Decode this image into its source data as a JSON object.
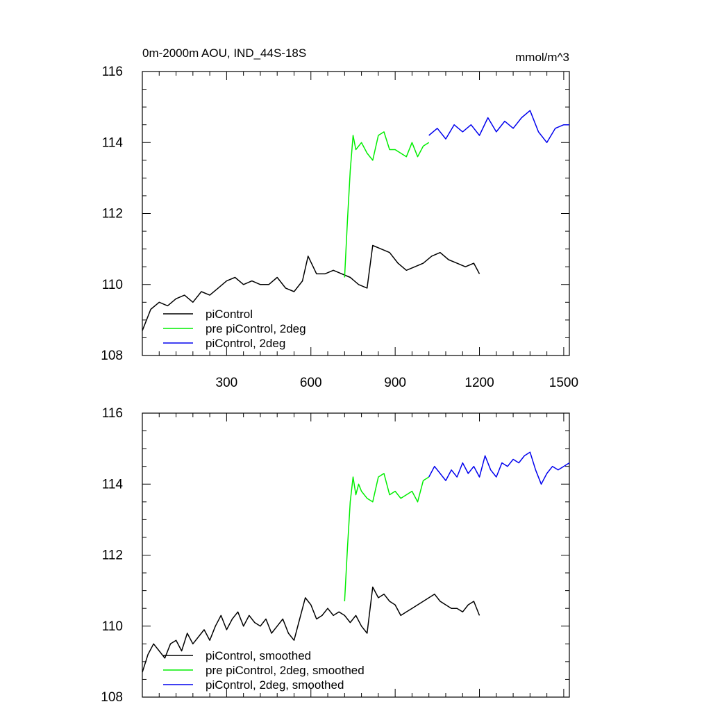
{
  "chart_data": [
    {
      "type": "line",
      "title": "0m-2000m AOU, IND_44S-18S",
      "units": "mmol/m^3",
      "xlim": [
        0,
        1520
      ],
      "ylim": [
        108,
        116
      ],
      "xticks": [
        300,
        600,
        900,
        1200,
        1500
      ],
      "xtick_labels": [
        "300",
        "600",
        "900",
        "1200",
        "1500"
      ],
      "yticks": [
        108,
        110,
        112,
        114,
        116
      ],
      "ytick_labels": [
        "108",
        "110",
        "112",
        "114",
        "116"
      ],
      "legend_position": "bottom-left",
      "series": [
        {
          "name": "piControl",
          "color": "#000000",
          "x": [
            0,
            30,
            60,
            90,
            120,
            150,
            180,
            210,
            240,
            270,
            300,
            330,
            360,
            390,
            420,
            450,
            480,
            510,
            540,
            570,
            590,
            620,
            650,
            680,
            710,
            740,
            770,
            800,
            820,
            850,
            880,
            910,
            940,
            970,
            1000,
            1030,
            1060,
            1090,
            1120,
            1150,
            1180,
            1200
          ],
          "y": [
            108.7,
            109.3,
            109.5,
            109.4,
            109.6,
            109.7,
            109.5,
            109.8,
            109.7,
            109.9,
            110.1,
            110.2,
            110.0,
            110.1,
            110.0,
            110.0,
            110.2,
            109.9,
            109.8,
            110.1,
            110.8,
            110.3,
            110.3,
            110.4,
            110.3,
            110.2,
            110.0,
            109.9,
            111.1,
            111.0,
            110.9,
            110.6,
            110.4,
            110.5,
            110.6,
            110.8,
            110.9,
            110.7,
            110.6,
            110.5,
            110.6,
            110.3
          ]
        },
        {
          "name": "pre piControl, 2deg",
          "color": "#00ee00",
          "x": [
            720,
            730,
            740,
            750,
            760,
            780,
            800,
            820,
            840,
            860,
            880,
            900,
            920,
            940,
            960,
            980,
            1000,
            1020
          ],
          "y": [
            110.2,
            111.8,
            113.2,
            114.2,
            113.8,
            114.0,
            113.7,
            113.5,
            114.2,
            114.3,
            113.8,
            113.8,
            113.7,
            113.6,
            114.0,
            113.6,
            113.9,
            114.0
          ]
        },
        {
          "name": "piControl, 2deg",
          "color": "#0000ee",
          "x": [
            1020,
            1050,
            1080,
            1110,
            1140,
            1170,
            1200,
            1230,
            1260,
            1290,
            1320,
            1350,
            1380,
            1410,
            1440,
            1470,
            1500,
            1520
          ],
          "y": [
            114.2,
            114.4,
            114.1,
            114.5,
            114.3,
            114.5,
            114.2,
            114.7,
            114.3,
            114.6,
            114.4,
            114.7,
            114.9,
            114.3,
            114.0,
            114.4,
            114.5,
            114.5
          ]
        }
      ]
    },
    {
      "type": "line",
      "xlim": [
        0,
        1520
      ],
      "ylim": [
        108,
        116
      ],
      "xticks": [
        300,
        600,
        900,
        1200,
        1500
      ],
      "yticks": [
        108,
        110,
        112,
        114,
        116
      ],
      "ytick_labels": [
        "108",
        "110",
        "112",
        "114",
        "116"
      ],
      "legend_position": "bottom-left",
      "series": [
        {
          "name": "piControl, smoothed",
          "color": "#000000",
          "x": [
            0,
            20,
            40,
            60,
            80,
            100,
            120,
            140,
            160,
            180,
            200,
            220,
            240,
            260,
            280,
            300,
            320,
            340,
            360,
            380,
            400,
            420,
            440,
            460,
            480,
            500,
            520,
            540,
            560,
            580,
            600,
            620,
            640,
            660,
            680,
            700,
            720,
            740,
            760,
            780,
            800,
            820,
            840,
            860,
            880,
            900,
            920,
            940,
            960,
            980,
            1000,
            1020,
            1040,
            1060,
            1080,
            1100,
            1120,
            1140,
            1160,
            1180,
            1200
          ],
          "y": [
            108.7,
            109.2,
            109.5,
            109.3,
            109.1,
            109.5,
            109.6,
            109.3,
            109.8,
            109.5,
            109.7,
            109.9,
            109.6,
            110.0,
            110.3,
            109.9,
            110.2,
            110.4,
            110.0,
            110.3,
            110.1,
            110.0,
            110.2,
            109.8,
            110.0,
            110.2,
            109.8,
            109.6,
            110.2,
            110.8,
            110.6,
            110.2,
            110.3,
            110.5,
            110.3,
            110.4,
            110.3,
            110.1,
            110.3,
            110.0,
            109.8,
            111.1,
            110.8,
            110.9,
            110.7,
            110.6,
            110.3,
            110.4,
            110.5,
            110.6,
            110.7,
            110.8,
            110.9,
            110.7,
            110.6,
            110.5,
            110.5,
            110.4,
            110.6,
            110.7,
            110.3
          ]
        },
        {
          "name": "pre piControl, 2deg, smoothed",
          "color": "#00ee00",
          "x": [
            720,
            730,
            740,
            750,
            760,
            770,
            780,
            800,
            820,
            840,
            860,
            880,
            900,
            920,
            940,
            960,
            980,
            1000,
            1020
          ],
          "y": [
            110.7,
            112.2,
            113.5,
            114.2,
            113.7,
            114.0,
            113.8,
            113.6,
            113.5,
            114.2,
            114.3,
            113.7,
            113.8,
            113.6,
            113.7,
            113.8,
            113.5,
            114.1,
            114.2
          ]
        },
        {
          "name": "piControl, 2deg, smoothed",
          "color": "#0000ee",
          "x": [
            1020,
            1040,
            1060,
            1080,
            1100,
            1120,
            1140,
            1160,
            1180,
            1200,
            1220,
            1240,
            1260,
            1280,
            1300,
            1320,
            1340,
            1360,
            1380,
            1400,
            1420,
            1440,
            1460,
            1480,
            1500,
            1520
          ],
          "y": [
            114.2,
            114.5,
            114.3,
            114.1,
            114.4,
            114.2,
            114.6,
            114.3,
            114.5,
            114.2,
            114.8,
            114.4,
            114.2,
            114.6,
            114.5,
            114.7,
            114.6,
            114.8,
            114.9,
            114.4,
            114.0,
            114.3,
            114.5,
            114.4,
            114.5,
            114.6
          ]
        }
      ]
    }
  ]
}
